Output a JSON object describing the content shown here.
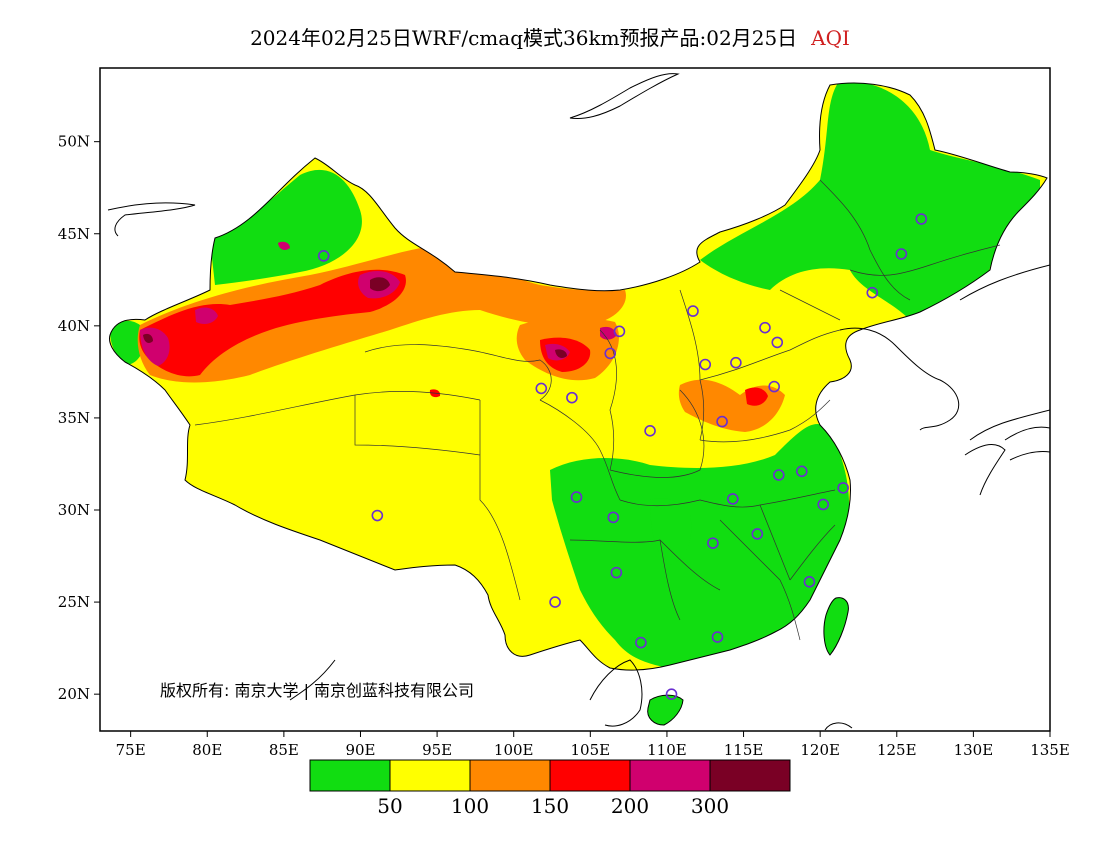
{
  "header": {
    "title": "2024年02月25日WRF/cmaq模式36km预报产品:02月25日",
    "variable": "AQI",
    "variable_color": "#d02020"
  },
  "map": {
    "lon_range": [
      73,
      135
    ],
    "lat_range": [
      18,
      54
    ],
    "lon_ticks": [
      {
        "value": 75,
        "label": "75E"
      },
      {
        "value": 80,
        "label": "80E"
      },
      {
        "value": 85,
        "label": "85E"
      },
      {
        "value": 90,
        "label": "90E"
      },
      {
        "value": 95,
        "label": "95E"
      },
      {
        "value": 100,
        "label": "100E"
      },
      {
        "value": 105,
        "label": "105E"
      },
      {
        "value": 110,
        "label": "110E"
      },
      {
        "value": 115,
        "label": "115E"
      },
      {
        "value": 120,
        "label": "120E"
      },
      {
        "value": 125,
        "label": "125E"
      },
      {
        "value": 130,
        "label": "130E"
      },
      {
        "value": 135,
        "label": "135E"
      }
    ],
    "lat_ticks": [
      {
        "value": 20,
        "label": "20N"
      },
      {
        "value": 25,
        "label": "25N"
      },
      {
        "value": 30,
        "label": "30N"
      },
      {
        "value": 35,
        "label": "35N"
      },
      {
        "value": 40,
        "label": "40N"
      },
      {
        "value": 45,
        "label": "45N"
      },
      {
        "value": 50,
        "label": "50N"
      }
    ],
    "copyright": "版权所有: 南京大学 | 南京创蓝科技有限公司",
    "station_color": "#6a2fd0"
  },
  "legend": {
    "colors": [
      "#11dd11",
      "#ffff00",
      "#ff8800",
      "#ff0000",
      "#d0006e",
      "#7a0025"
    ],
    "labels": [
      "50",
      "100",
      "150",
      "200",
      "300"
    ]
  },
  "stations": [
    [
      87.6,
      43.8
    ],
    [
      91.1,
      29.7
    ],
    [
      101.8,
      36.6
    ],
    [
      103.8,
      36.1
    ],
    [
      106.3,
      38.5
    ],
    [
      106.9,
      39.7
    ],
    [
      108.9,
      34.3
    ],
    [
      104.1,
      30.7
    ],
    [
      106.5,
      29.6
    ],
    [
      106.7,
      26.6
    ],
    [
      102.7,
      25.0
    ],
    [
      108.3,
      22.8
    ],
    [
      110.3,
      20.0
    ],
    [
      113.3,
      23.1
    ],
    [
      113.0,
      28.2
    ],
    [
      114.3,
      30.6
    ],
    [
      115.9,
      28.7
    ],
    [
      117.3,
      31.9
    ],
    [
      118.8,
      32.1
    ],
    [
      120.2,
      30.3
    ],
    [
      121.5,
      31.2
    ],
    [
      119.3,
      26.1
    ],
    [
      113.6,
      34.8
    ],
    [
      117.0,
      36.7
    ],
    [
      112.5,
      37.9
    ],
    [
      114.5,
      38.0
    ],
    [
      116.4,
      39.9
    ],
    [
      117.2,
      39.1
    ],
    [
      111.7,
      40.8
    ],
    [
      123.4,
      41.8
    ],
    [
      125.3,
      43.9
    ],
    [
      126.6,
      45.8
    ]
  ]
}
